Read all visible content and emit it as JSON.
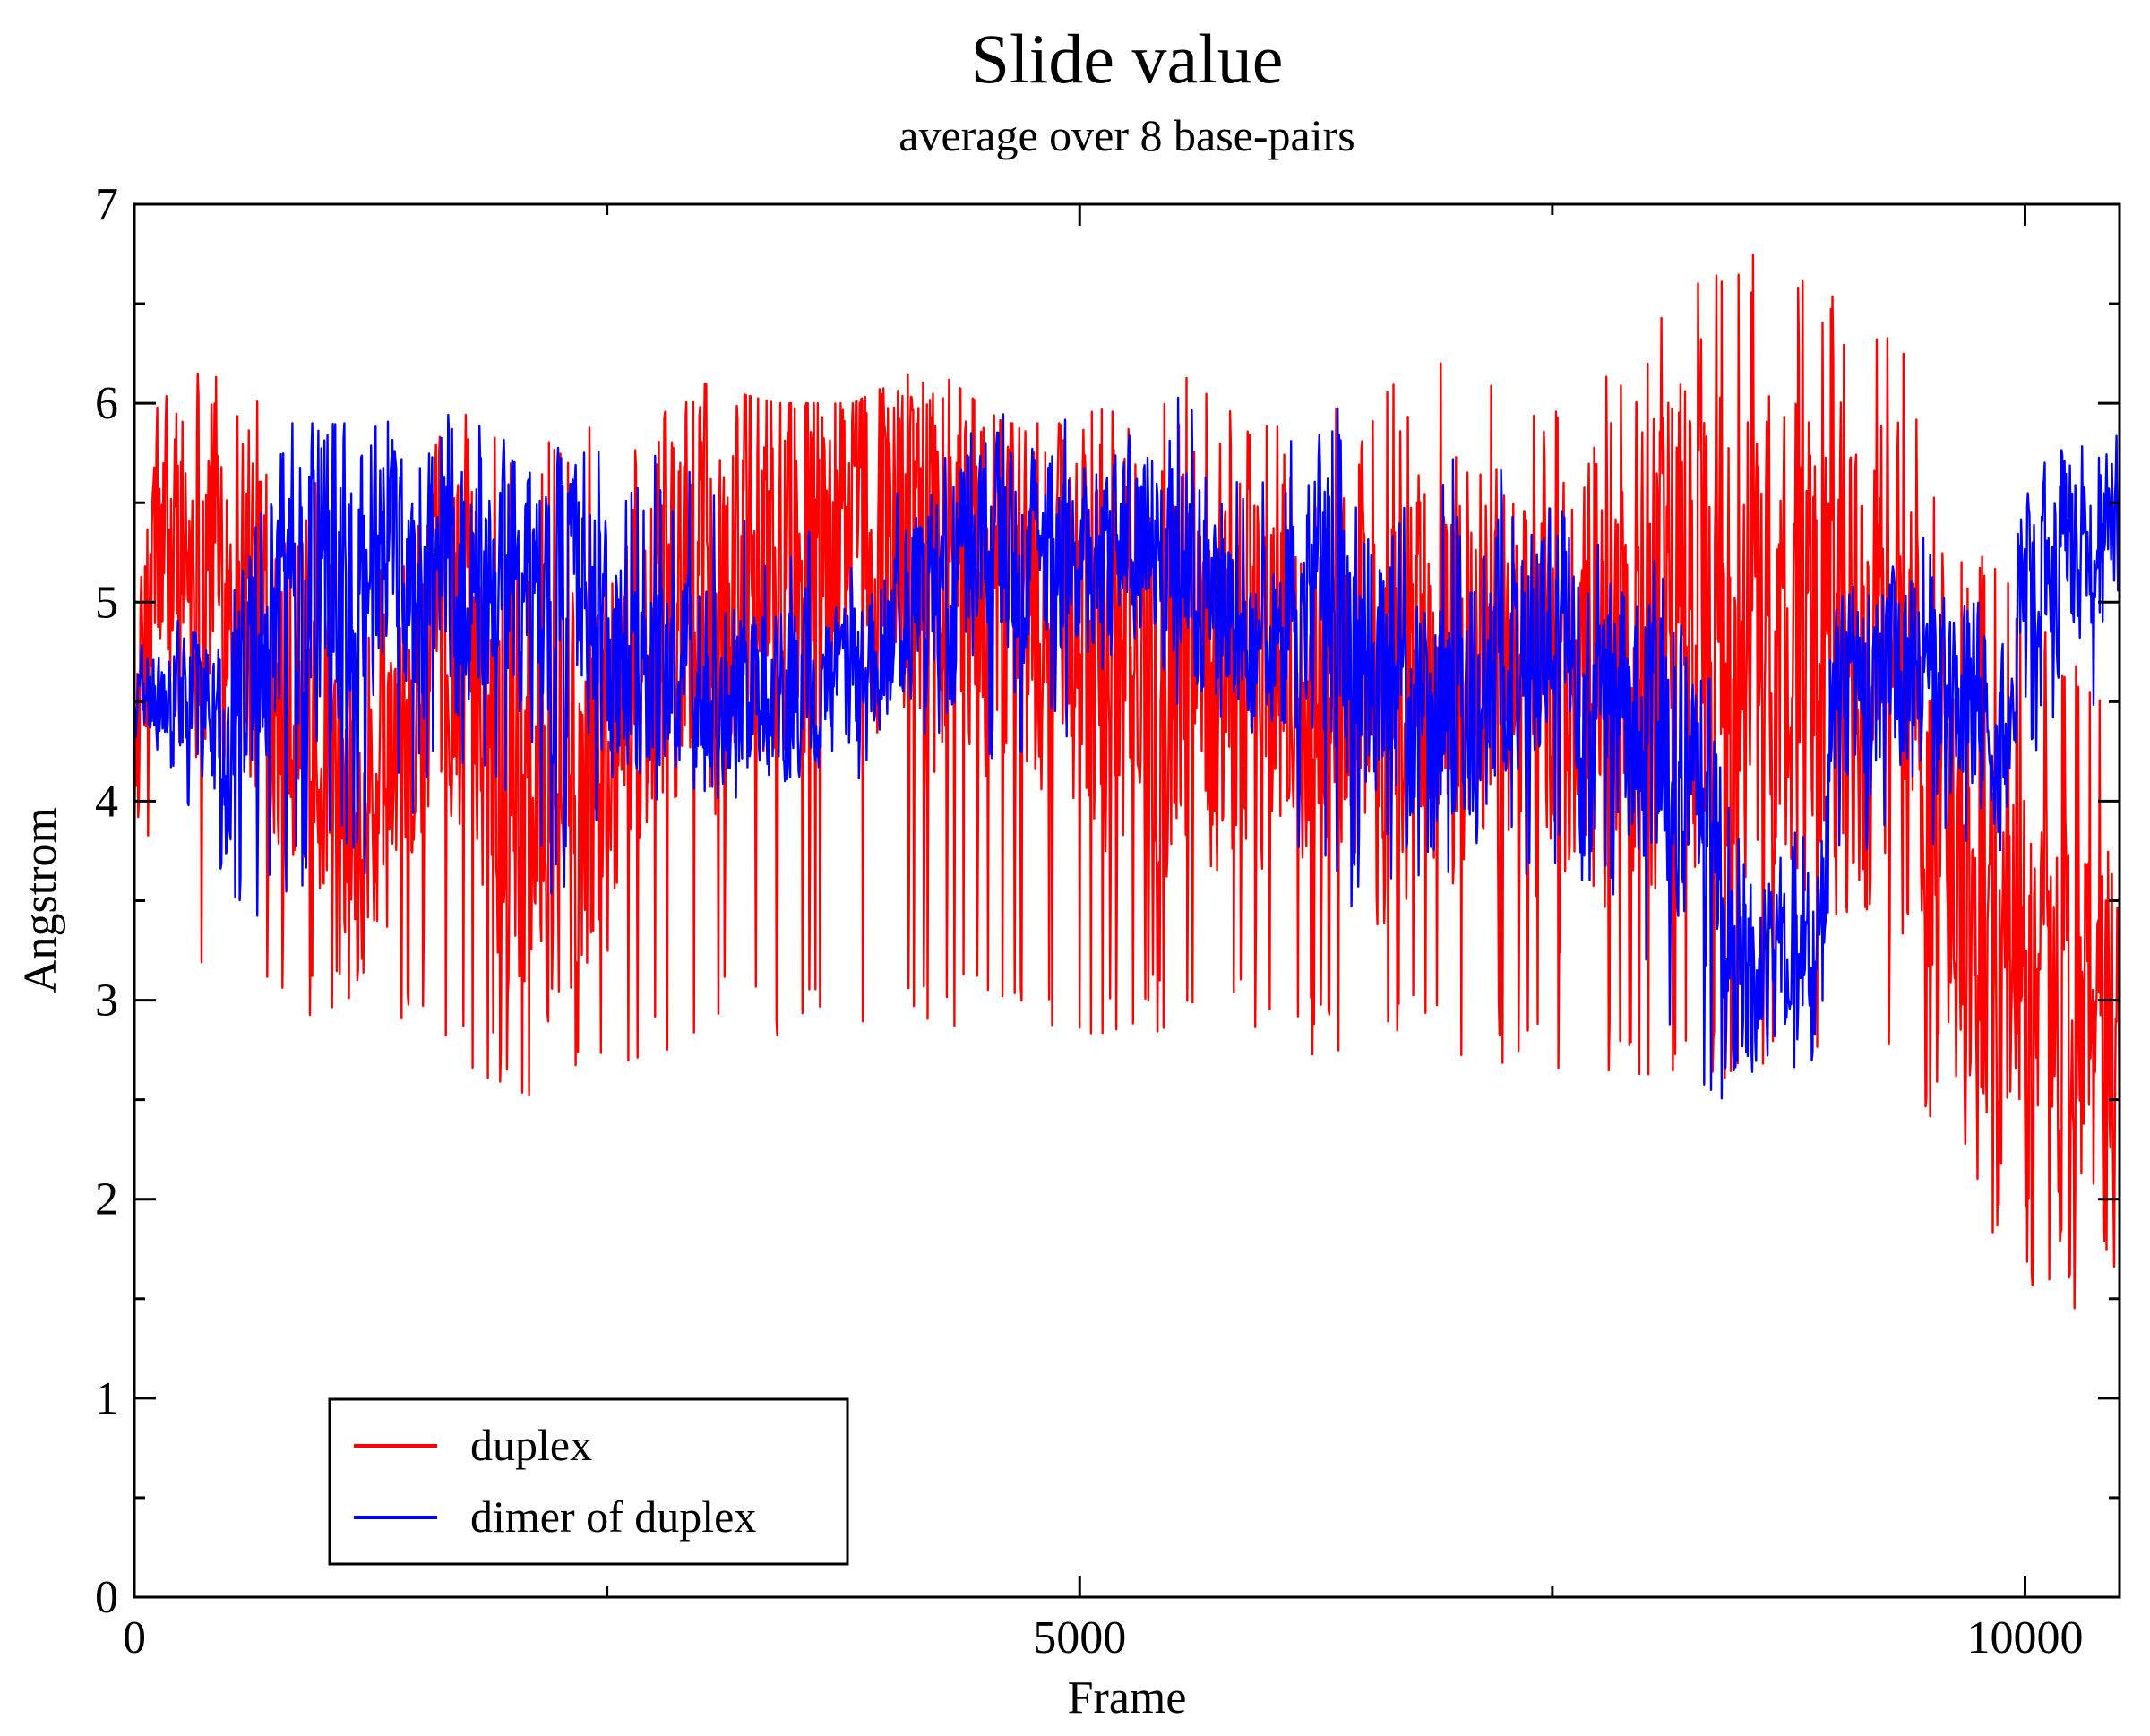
{
  "chart_data": {
    "type": "line",
    "title": "Slide value",
    "subtitle": "average over 8 base-pairs",
    "xlabel": "Frame",
    "ylabel": "Angstrom",
    "xlim": [
      0,
      10500
    ],
    "ylim": [
      0,
      7
    ],
    "x_major_ticks": [
      0,
      5000,
      10000
    ],
    "x_minor_ticks": [
      2500,
      7500
    ],
    "x_tick_labels": [
      "0",
      "5000",
      "10000"
    ],
    "y_major_ticks": [
      0,
      1,
      2,
      3,
      4,
      5,
      6,
      7
    ],
    "y_tick_labels": [
      "0",
      "1",
      "2",
      "3",
      "4",
      "5",
      "6",
      "7"
    ],
    "grid": false,
    "legend_position": "bottom-left",
    "colors": {
      "duplex": "#ff0000",
      "dimer of duplex": "#0000ff"
    },
    "series_profile_note": "Dense frame-by-frame traces; points below are the running mean with min/max envelope per interval (data units).",
    "series": [
      {
        "name": "duplex",
        "color": "#ff0000",
        "profile": [
          {
            "x": 0,
            "mean": 4.3,
            "min": 3.7,
            "max": 4.8
          },
          {
            "x": 100,
            "mean": 5.2,
            "min": 3.5,
            "max": 6.0
          },
          {
            "x": 400,
            "mean": 5.3,
            "min": 3.0,
            "max": 6.2
          },
          {
            "x": 800,
            "mean": 4.8,
            "min": 2.9,
            "max": 6.1
          },
          {
            "x": 1200,
            "mean": 3.7,
            "min": 2.9,
            "max": 5.0
          },
          {
            "x": 1700,
            "mean": 5.0,
            "min": 2.7,
            "max": 6.0
          },
          {
            "x": 2000,
            "mean": 4.2,
            "min": 2.5,
            "max": 5.9
          },
          {
            "x": 2400,
            "mean": 4.0,
            "min": 2.5,
            "max": 5.9
          },
          {
            "x": 2600,
            "mean": 4.6,
            "min": 2.6,
            "max": 5.8
          },
          {
            "x": 3000,
            "mean": 5.0,
            "min": 2.8,
            "max": 6.1
          },
          {
            "x": 3400,
            "mean": 5.3,
            "min": 2.7,
            "max": 6.0
          },
          {
            "x": 3800,
            "mean": 5.4,
            "min": 2.8,
            "max": 6.0
          },
          {
            "x": 4200,
            "mean": 5.3,
            "min": 2.8,
            "max": 6.2
          },
          {
            "x": 4600,
            "mean": 5.1,
            "min": 2.8,
            "max": 5.9
          },
          {
            "x": 5000,
            "mean": 4.8,
            "min": 2.6,
            "max": 5.9
          },
          {
            "x": 5400,
            "mean": 4.8,
            "min": 2.8,
            "max": 6.3
          },
          {
            "x": 5800,
            "mean": 4.7,
            "min": 2.8,
            "max": 6.0
          },
          {
            "x": 6200,
            "mean": 4.7,
            "min": 2.7,
            "max": 5.9
          },
          {
            "x": 6600,
            "mean": 4.5,
            "min": 2.8,
            "max": 6.1
          },
          {
            "x": 7000,
            "mean": 4.7,
            "min": 2.7,
            "max": 6.3
          },
          {
            "x": 7500,
            "mean": 4.5,
            "min": 2.6,
            "max": 6.0
          },
          {
            "x": 7900,
            "mean": 4.6,
            "min": 2.6,
            "max": 6.2
          },
          {
            "x": 8200,
            "mean": 5.0,
            "min": 2.5,
            "max": 6.7
          },
          {
            "x": 8500,
            "mean": 4.6,
            "min": 2.6,
            "max": 6.7
          },
          {
            "x": 8600,
            "mean": 4.8,
            "min": 2.6,
            "max": 6.9
          },
          {
            "x": 8900,
            "mean": 4.7,
            "min": 2.6,
            "max": 6.6
          },
          {
            "x": 9100,
            "mean": 4.5,
            "min": 2.5,
            "max": 6.6
          },
          {
            "x": 9300,
            "mean": 4.7,
            "min": 2.5,
            "max": 6.6
          },
          {
            "x": 9600,
            "mean": 3.7,
            "min": 2.2,
            "max": 5.4
          },
          {
            "x": 9800,
            "mean": 3.0,
            "min": 1.8,
            "max": 5.3
          },
          {
            "x": 10000,
            "mean": 3.0,
            "min": 1.6,
            "max": 5.0
          },
          {
            "x": 10200,
            "mean": 2.8,
            "min": 1.4,
            "max": 4.8
          },
          {
            "x": 10400,
            "mean": 2.9,
            "min": 1.5,
            "max": 4.6
          }
        ]
      },
      {
        "name": "dimer of duplex",
        "color": "#0000ff",
        "profile": [
          {
            "x": 0,
            "mean": 4.5,
            "min": 4.1,
            "max": 4.8
          },
          {
            "x": 300,
            "mean": 4.6,
            "min": 3.9,
            "max": 5.0
          },
          {
            "x": 500,
            "mean": 4.2,
            "min": 3.3,
            "max": 5.0
          },
          {
            "x": 700,
            "mean": 5.1,
            "min": 3.4,
            "max": 5.9
          },
          {
            "x": 1200,
            "mean": 5.2,
            "min": 3.6,
            "max": 5.9
          },
          {
            "x": 1700,
            "mean": 5.1,
            "min": 4.1,
            "max": 6.0
          },
          {
            "x": 2200,
            "mean": 5.1,
            "min": 3.4,
            "max": 5.8
          },
          {
            "x": 2600,
            "mean": 4.6,
            "min": 4.0,
            "max": 5.8
          },
          {
            "x": 3200,
            "mean": 4.5,
            "min": 4.0,
            "max": 5.6
          },
          {
            "x": 3800,
            "mean": 4.6,
            "min": 4.0,
            "max": 5.3
          },
          {
            "x": 4100,
            "mean": 5.0,
            "min": 4.2,
            "max": 5.7
          },
          {
            "x": 4500,
            "mean": 5.3,
            "min": 4.2,
            "max": 6.0
          },
          {
            "x": 4800,
            "mean": 5.3,
            "min": 4.2,
            "max": 6.0
          },
          {
            "x": 5100,
            "mean": 5.2,
            "min": 4.4,
            "max": 5.9
          },
          {
            "x": 5500,
            "mean": 5.3,
            "min": 4.4,
            "max": 6.2
          },
          {
            "x": 5900,
            "mean": 4.8,
            "min": 4.3,
            "max": 5.5
          },
          {
            "x": 6300,
            "mean": 5.0,
            "min": 3.4,
            "max": 6.1
          },
          {
            "x": 6700,
            "mean": 4.5,
            "min": 3.6,
            "max": 5.6
          },
          {
            "x": 7100,
            "mean": 4.6,
            "min": 3.5,
            "max": 5.8
          },
          {
            "x": 7500,
            "mean": 4.9,
            "min": 3.7,
            "max": 5.7
          },
          {
            "x": 7800,
            "mean": 4.6,
            "min": 3.5,
            "max": 5.3
          },
          {
            "x": 8100,
            "mean": 4.3,
            "min": 2.6,
            "max": 5.2
          },
          {
            "x": 8300,
            "mean": 3.9,
            "min": 2.5,
            "max": 5.1
          },
          {
            "x": 8500,
            "mean": 3.1,
            "min": 2.4,
            "max": 3.9
          },
          {
            "x": 8700,
            "mean": 3.2,
            "min": 2.5,
            "max": 3.9
          },
          {
            "x": 8900,
            "mean": 3.2,
            "min": 2.5,
            "max": 3.9
          },
          {
            "x": 9000,
            "mean": 4.5,
            "min": 3.6,
            "max": 5.2
          },
          {
            "x": 9400,
            "mean": 4.7,
            "min": 3.8,
            "max": 5.4
          },
          {
            "x": 9700,
            "mean": 4.6,
            "min": 3.7,
            "max": 5.3
          },
          {
            "x": 9900,
            "mean": 4.3,
            "min": 3.5,
            "max": 5.0
          },
          {
            "x": 10000,
            "mean": 5.2,
            "min": 4.2,
            "max": 5.8
          },
          {
            "x": 10200,
            "mean": 5.2,
            "min": 4.3,
            "max": 5.9
          },
          {
            "x": 10400,
            "mean": 5.3,
            "min": 4.3,
            "max": 5.9
          }
        ]
      }
    ]
  }
}
